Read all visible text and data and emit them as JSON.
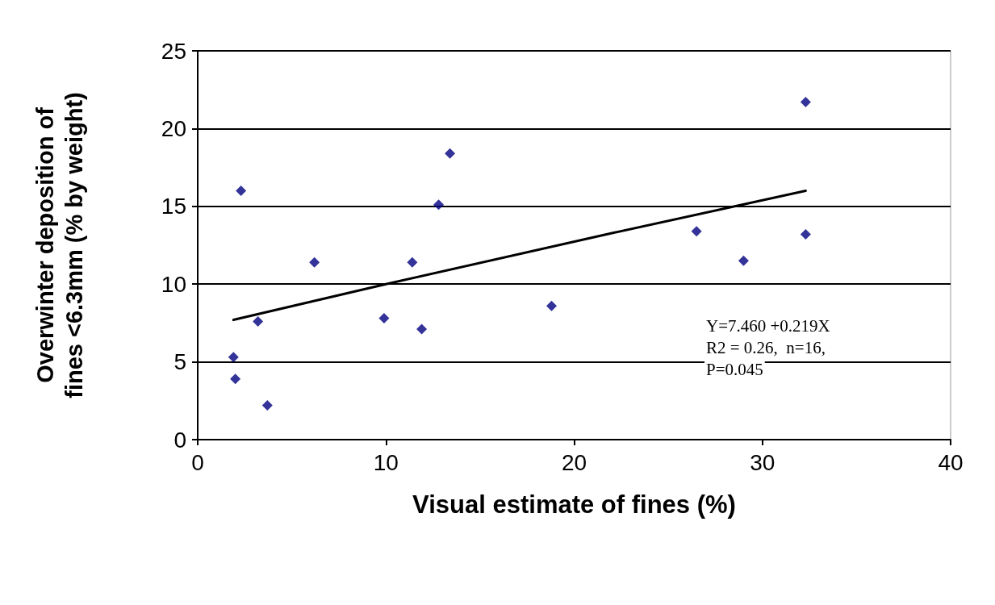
{
  "chart_data": {
    "type": "scatter",
    "xlabel": "Visual estimate of fines (%)",
    "ylabel": "Overwinter deposition of\nfines <6.3mm (% by weight)",
    "series": [
      {
        "marker": "diamond",
        "color": "#000080",
        "x": [
          2.3,
          13.4,
          12.8,
          6.2,
          11.4,
          3.2,
          9.9,
          11.9,
          1.9,
          2.0,
          3.7,
          32.3,
          32.3,
          26.5,
          29.0,
          18.8
        ],
        "values": [
          16.0,
          18.4,
          15.1,
          11.4,
          11.4,
          7.6,
          7.8,
          7.1,
          5.3,
          3.9,
          2.2,
          21.7,
          13.2,
          13.4,
          11.5,
          8.6
        ]
      },
      {
        "type": "line",
        "marker": "none",
        "color": "#000000",
        "x": [
          1.9,
          10,
          22.1,
          32.3
        ],
        "values": [
          7.7,
          10.0,
          13.3,
          16.0
        ]
      }
    ],
    "annotations": [
      "Y=7.460 +0.219X",
      "R2 = 0.26,  n=16,",
      "P=0.045"
    ],
    "xlim": [
      0,
      40
    ],
    "xticks": [
      0,
      10,
      20,
      30,
      40
    ],
    "ylim": [
      0,
      25
    ],
    "yticks": [
      0,
      5,
      10,
      15,
      20,
      25
    ],
    "grid": "y"
  }
}
